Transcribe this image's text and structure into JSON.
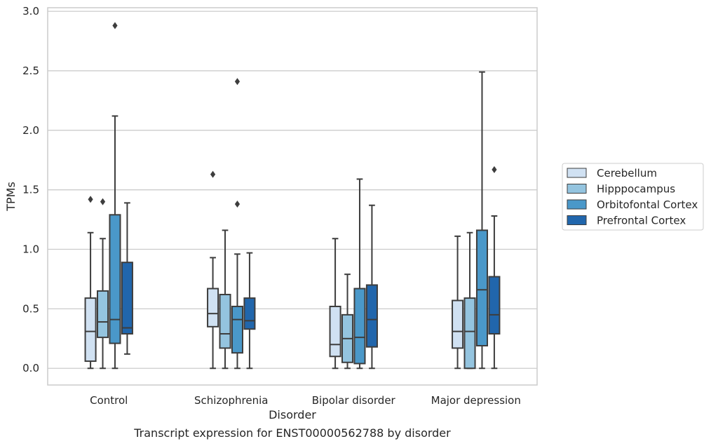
{
  "chart_data": {
    "type": "box",
    "caption": "Transcript expression for ENST00000562788 by disorder",
    "xlabel": "Disorder",
    "ylabel": "TPMs",
    "ylim": [
      -0.14,
      3.03
    ],
    "yticks": [
      "0.0",
      "0.5",
      "1.0",
      "1.5",
      "2.0",
      "2.5",
      "3.0"
    ],
    "grid": "horizontal",
    "legend_position": "right",
    "categories": [
      "Control",
      "Schizophrenia",
      "Bipolar disorder",
      "Major depression"
    ],
    "series": [
      {
        "name": "Cerebellum",
        "color": "#d0e1f2",
        "boxes": [
          {
            "whisker_low": 0.0,
            "q1": 0.06,
            "median": 0.31,
            "q3": 0.59,
            "whisker_high": 1.14,
            "outliers": [
              1.42
            ]
          },
          {
            "whisker_low": 0.0,
            "q1": 0.35,
            "median": 0.46,
            "q3": 0.67,
            "whisker_high": 0.93,
            "outliers": [
              1.63
            ]
          },
          {
            "whisker_low": 0.0,
            "q1": 0.1,
            "median": 0.2,
            "q3": 0.52,
            "whisker_high": 1.09,
            "outliers": []
          },
          {
            "whisker_low": 0.0,
            "q1": 0.17,
            "median": 0.31,
            "q3": 0.57,
            "whisker_high": 1.11,
            "outliers": []
          }
        ]
      },
      {
        "name": "Hipppocampus",
        "color": "#94c4df",
        "boxes": [
          {
            "whisker_low": 0.0,
            "q1": 0.26,
            "median": 0.39,
            "q3": 0.65,
            "whisker_high": 1.09,
            "outliers": [
              1.4
            ]
          },
          {
            "whisker_low": 0.0,
            "q1": 0.17,
            "median": 0.29,
            "q3": 0.62,
            "whisker_high": 1.16,
            "outliers": []
          },
          {
            "whisker_low": 0.0,
            "q1": 0.05,
            "median": 0.25,
            "q3": 0.45,
            "whisker_high": 0.79,
            "outliers": []
          },
          {
            "whisker_low": 0.0,
            "q1": 0.0,
            "median": 0.31,
            "q3": 0.59,
            "whisker_high": 1.14,
            "outliers": []
          }
        ]
      },
      {
        "name": "Orbitofontal Cortex",
        "color": "#4a98c9",
        "boxes": [
          {
            "whisker_low": 0.0,
            "q1": 0.21,
            "median": 0.41,
            "q3": 1.29,
            "whisker_high": 2.12,
            "outliers": [
              2.88
            ]
          },
          {
            "whisker_low": 0.0,
            "q1": 0.13,
            "median": 0.41,
            "q3": 0.52,
            "whisker_high": 0.96,
            "outliers": [
              2.41,
              1.38
            ]
          },
          {
            "whisker_low": 0.0,
            "q1": 0.04,
            "median": 0.26,
            "q3": 0.67,
            "whisker_high": 1.59,
            "outliers": []
          },
          {
            "whisker_low": 0.0,
            "q1": 0.19,
            "median": 0.66,
            "q3": 1.16,
            "whisker_high": 2.49,
            "outliers": []
          }
        ]
      },
      {
        "name": "Prefrontal Cortex",
        "color": "#2166ac",
        "boxes": [
          {
            "whisker_low": 0.12,
            "q1": 0.29,
            "median": 0.34,
            "q3": 0.89,
            "whisker_high": 1.39,
            "outliers": []
          },
          {
            "whisker_low": 0.0,
            "q1": 0.33,
            "median": 0.4,
            "q3": 0.59,
            "whisker_high": 0.97,
            "outliers": []
          },
          {
            "whisker_low": 0.0,
            "q1": 0.18,
            "median": 0.41,
            "q3": 0.7,
            "whisker_high": 1.37,
            "outliers": []
          },
          {
            "whisker_low": 0.0,
            "q1": 0.29,
            "median": 0.45,
            "q3": 0.77,
            "whisker_high": 1.28,
            "outliers": [
              1.67
            ]
          }
        ]
      }
    ]
  }
}
